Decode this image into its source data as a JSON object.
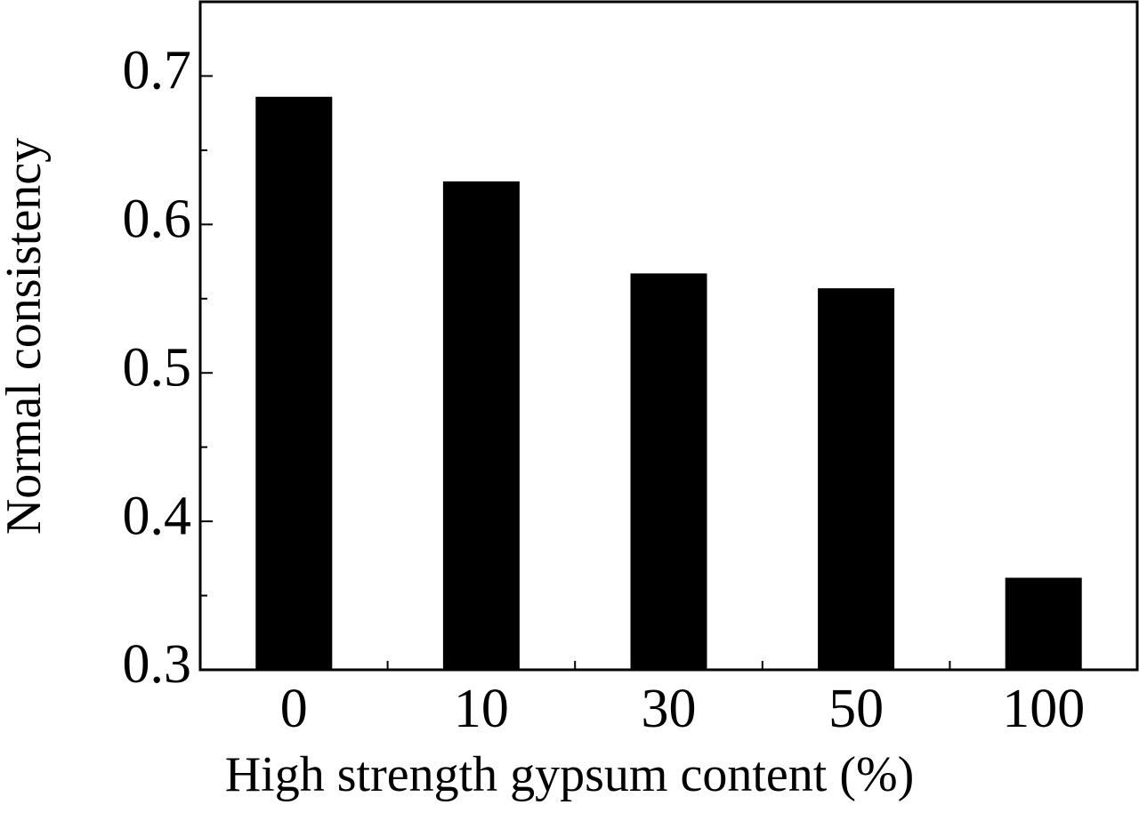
{
  "chart_data": {
    "type": "bar",
    "xlabel": "High strength gypsum content (%)",
    "ylabel": "Normal consistency",
    "categories": [
      "0",
      "10",
      "30",
      "50",
      "100"
    ],
    "values": [
      0.686,
      0.629,
      0.567,
      0.557,
      0.362
    ],
    "color": "#000000",
    "ylim": [
      0.3,
      0.75
    ],
    "yticks": [
      {
        "value": 0.3,
        "label": "0.3"
      },
      {
        "value": 0.4,
        "label": "0.4"
      },
      {
        "value": 0.5,
        "label": "0.5"
      },
      {
        "value": 0.6,
        "label": "0.6"
      },
      {
        "value": 0.7,
        "label": "0.7"
      }
    ],
    "yminorticks": [
      0.35,
      0.45,
      0.55,
      0.65,
      0.75
    ],
    "grid": false
  }
}
